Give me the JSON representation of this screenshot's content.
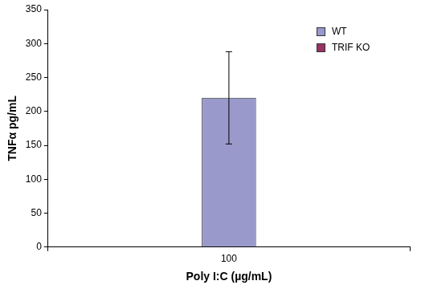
{
  "chart_data": {
    "type": "bar",
    "x_label": "Poly I:C (µg/mL)",
    "y_label": "TNFα pg/mL",
    "categories": [
      "100"
    ],
    "series": [
      {
        "name": "WT",
        "color": "#9999cc",
        "values": [
          220
        ],
        "errors": [
          68
        ]
      },
      {
        "name": "TRIF KO",
        "color": "#993366",
        "values": [
          0
        ]
      }
    ],
    "ylim": [
      0,
      350
    ],
    "yticks": [
      0,
      50,
      100,
      150,
      200,
      250,
      300,
      350
    ],
    "grid": false,
    "legend": "upper right"
  }
}
